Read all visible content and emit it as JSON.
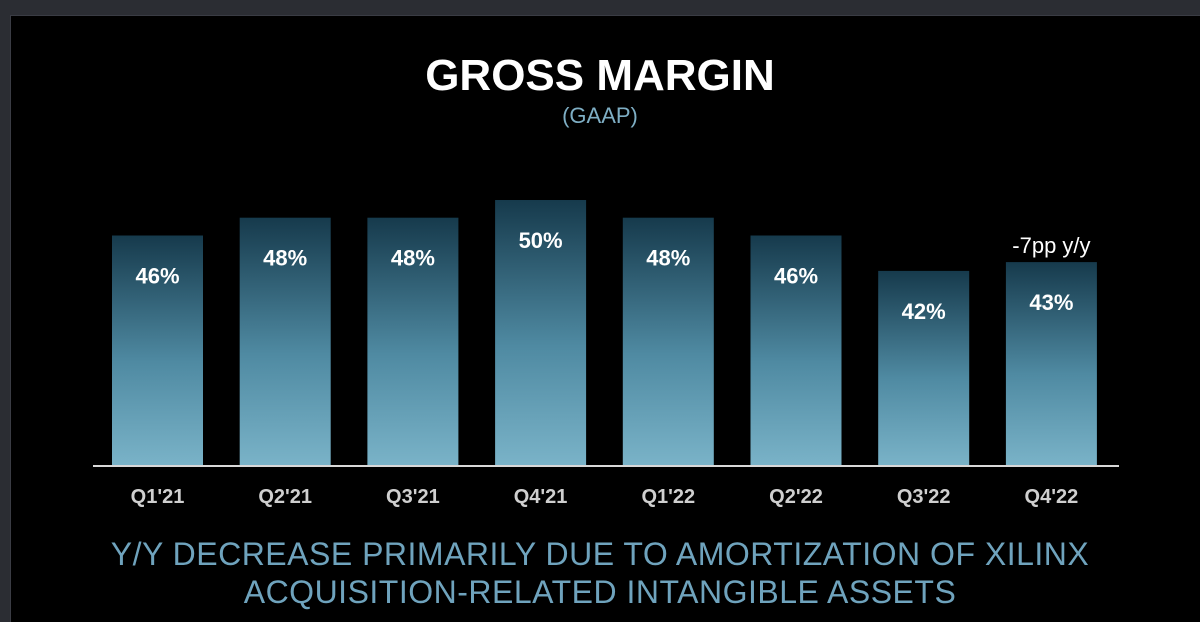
{
  "chart_data": {
    "type": "bar",
    "title": "GROSS MARGIN",
    "subtitle": "(GAAP)",
    "categories": [
      "Q1'21",
      "Q2'21",
      "Q3'21",
      "Q4'21",
      "Q1'22",
      "Q2'22",
      "Q3'22",
      "Q4'22"
    ],
    "values": [
      46,
      48,
      48,
      50,
      48,
      46,
      42,
      43
    ],
    "value_labels": [
      "46%",
      "48%",
      "48%",
      "50%",
      "48%",
      "46%",
      "42%",
      "43%"
    ],
    "annotations": [
      {
        "category": "Q4'22",
        "text": "-7pp y/y"
      }
    ],
    "xlabel": "",
    "ylabel": "",
    "ylim": [
      20,
      50
    ],
    "unit": "%",
    "grid": false,
    "colors": {
      "bar_top": "#163a4c",
      "bar_bottom": "#7ab3c8",
      "axis": "#d8d8d8",
      "label": "#ffffff",
      "tick_label": "#cfcfcf"
    }
  },
  "footer": {
    "line1": "Y/Y DECREASE PRIMARILY DUE TO AMORTIZATION OF XILINX",
    "line2": "ACQUISITION-RELATED INTANGIBLE ASSETS"
  }
}
